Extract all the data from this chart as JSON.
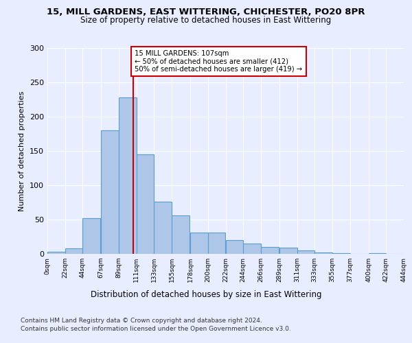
{
  "title1": "15, MILL GARDENS, EAST WITTERING, CHICHESTER, PO20 8PR",
  "title2": "Size of property relative to detached houses in East Wittering",
  "xlabel": "Distribution of detached houses by size in East Wittering",
  "ylabel": "Number of detached properties",
  "bar_color": "#aec6e8",
  "bar_edge_color": "#5a9fd4",
  "bar_starts": [
    0,
    22,
    44,
    67,
    89,
    111,
    133,
    155,
    178,
    200,
    222,
    244,
    266,
    289,
    311,
    333,
    355,
    377,
    400,
    422
  ],
  "bar_heights": [
    3,
    8,
    52,
    180,
    228,
    145,
    76,
    56,
    31,
    31,
    20,
    15,
    10,
    9,
    5,
    2,
    1,
    0,
    1,
    0
  ],
  "bin_width": 22,
  "tick_labels": [
    "0sqm",
    "22sqm",
    "44sqm",
    "67sqm",
    "89sqm",
    "111sqm",
    "133sqm",
    "155sqm",
    "178sqm",
    "200sqm",
    "222sqm",
    "244sqm",
    "266sqm",
    "289sqm",
    "311sqm",
    "333sqm",
    "355sqm",
    "377sqm",
    "400sqm",
    "422sqm",
    "444sqm"
  ],
  "property_line_x": 107,
  "annotation_text": "15 MILL GARDENS: 107sqm\n← 50% of detached houses are smaller (412)\n50% of semi-detached houses are larger (419) →",
  "annotation_box_color": "#ffffff",
  "annotation_border_color": "#cc0000",
  "vertical_line_color": "#cc0000",
  "ylim": [
    0,
    300
  ],
  "yticks": [
    0,
    50,
    100,
    150,
    200,
    250,
    300
  ],
  "footer1": "Contains HM Land Registry data © Crown copyright and database right 2024.",
  "footer2": "Contains public sector information licensed under the Open Government Licence v3.0.",
  "background_color": "#e8eeff",
  "plot_bg_color": "#e8eeff"
}
